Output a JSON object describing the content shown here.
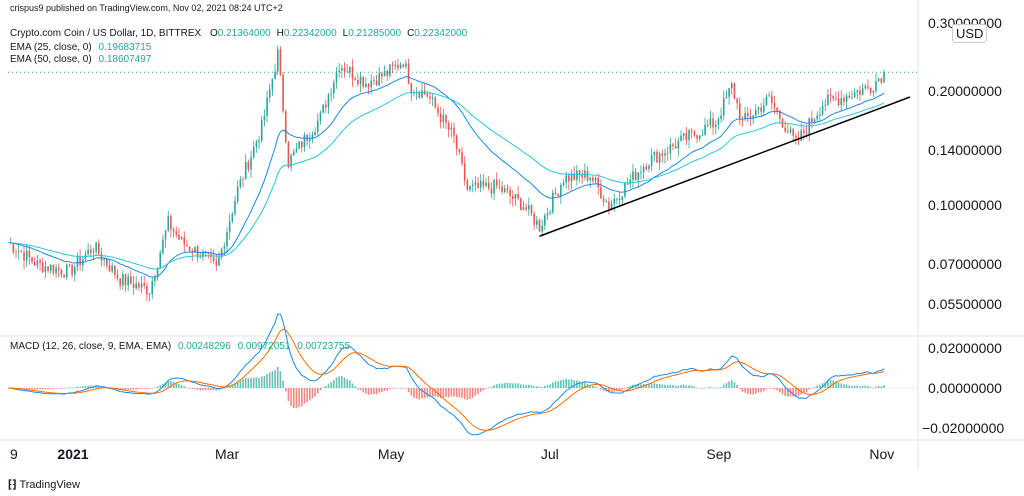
{
  "header": {
    "published": "crispus9 published on TradingView.com, Nov 02, 2021 08:24 UTC+2",
    "symbol": "Crypto.com Coin / US Dollar, 1D, BITTREX",
    "ohlc": [
      {
        "k": "O",
        "v": "0.21364000"
      },
      {
        "k": "H",
        "v": "0.22342000"
      },
      {
        "k": "L",
        "v": "0.21285000"
      },
      {
        "k": "C",
        "v": "0.22342000"
      }
    ],
    "ema25_label": "EMA (25, close, 0)",
    "ema25_value": "0.19683715",
    "ema50_label": "EMA (50, close, 0)",
    "ema50_value": "0.18607497",
    "macd_label": "MACD (12, 26, close, 9, EMA, EMA)",
    "macd_values": [
      "0.00248296",
      "0.00972051",
      "0.00723755"
    ]
  },
  "currency": "USD",
  "footer": "TradingView",
  "colors": {
    "up": "#26a69a",
    "down": "#ef5350",
    "ema25": "#1e88e5",
    "ema50": "#26c6da",
    "macd": "#1e88e5",
    "signal": "#ff6d00",
    "trendline": "#000000"
  },
  "chart_data": {
    "type": "candlestick",
    "y_scale": "log",
    "price_ticks": [
      "0.30000000",
      "0.20000000",
      "0.14000000",
      "0.10000000",
      "0.07000000",
      "0.05500000"
    ],
    "macd_ticks": [
      "0.02000000",
      "0.00000000",
      "−0.02000000"
    ],
    "x_ticks": [
      {
        "label": "9",
        "date": "2020-12-09"
      },
      {
        "label": "2021",
        "date": "2021-01-01",
        "bold": true
      },
      {
        "label": "Mar",
        "date": "2021-03-01"
      },
      {
        "label": "May",
        "date": "2021-05-01"
      },
      {
        "label": "Jul",
        "date": "2021-07-01"
      },
      {
        "label": "Sep",
        "date": "2021-09-01"
      },
      {
        "label": "Nov",
        "date": "2021-11-01"
      }
    ],
    "x_range": [
      "2020-12-09",
      "2021-11-02"
    ],
    "price_range": [
      0.046,
      0.31
    ],
    "macd_range": [
      -0.025,
      0.025
    ],
    "last_close": 0.22342,
    "close_path": [
      [
        "2020-12-09",
        0.08
      ],
      [
        "2020-12-20",
        0.07
      ],
      [
        "2021-01-01",
        0.067
      ],
      [
        "2021-01-10",
        0.078
      ],
      [
        "2021-01-20",
        0.064
      ],
      [
        "2021-01-31",
        0.06
      ],
      [
        "2021-02-07",
        0.09
      ],
      [
        "2021-02-12",
        0.08
      ],
      [
        "2021-02-20",
        0.074
      ],
      [
        "2021-02-25",
        0.068
      ],
      [
        "2021-03-05",
        0.11
      ],
      [
        "2021-03-14",
        0.16
      ],
      [
        "2021-03-20",
        0.25
      ],
      [
        "2021-03-24",
        0.13
      ],
      [
        "2021-04-05",
        0.17
      ],
      [
        "2021-04-12",
        0.235
      ],
      [
        "2021-04-22",
        0.21
      ],
      [
        "2021-04-30",
        0.222
      ],
      [
        "2021-05-06",
        0.24
      ],
      [
        "2021-05-09",
        0.205
      ],
      [
        "2021-05-15",
        0.195
      ],
      [
        "2021-05-25",
        0.15
      ],
      [
        "2021-05-30",
        0.11
      ],
      [
        "2021-06-10",
        0.112
      ],
      [
        "2021-06-20",
        0.1
      ],
      [
        "2021-06-26",
        0.088
      ],
      [
        "2021-07-05",
        0.118
      ],
      [
        "2021-07-15",
        0.12
      ],
      [
        "2021-07-22",
        0.1
      ],
      [
        "2021-08-05",
        0.13
      ],
      [
        "2021-08-20",
        0.15
      ],
      [
        "2021-08-31",
        0.165
      ],
      [
        "2021-09-06",
        0.205
      ],
      [
        "2021-09-10",
        0.165
      ],
      [
        "2021-09-20",
        0.19
      ],
      [
        "2021-09-30",
        0.145
      ],
      [
        "2021-10-10",
        0.185
      ],
      [
        "2021-10-20",
        0.195
      ],
      [
        "2021-10-28",
        0.205
      ],
      [
        "2021-11-02",
        0.22342
      ]
    ],
    "trendline": [
      [
        "2021-06-26",
        0.083
      ],
      [
        "2021-11-02",
        0.185
      ]
    ],
    "last_price_line": 0.22342
  }
}
